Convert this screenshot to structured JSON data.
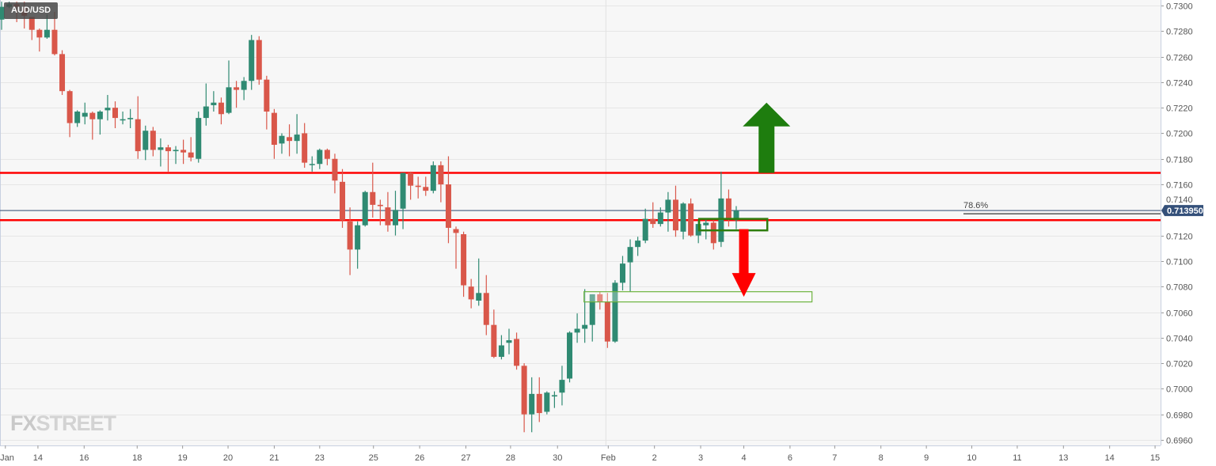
{
  "symbol": "AUD/USD",
  "logo": {
    "text_a": "FX",
    "text_b": "STREET"
  },
  "colors": {
    "up": "#2f8a72",
    "down": "#d9574a",
    "level_line": "#ff0000",
    "price_line": "#34507a",
    "up_arrow": "#1e7d0e",
    "down_arrow": "#ff0000",
    "zone_box": "#2e7d0e",
    "zone_box_light": "#6db33f",
    "grid": "#e6e6e6",
    "background": "#f7f7f7"
  },
  "chart_data": {
    "type": "candlestick",
    "title": "AUD/USD",
    "ylim": [
      0.6955,
      0.7304
    ],
    "y_ticks": [
      "0.7300",
      "0.7280",
      "0.7260",
      "0.7240",
      "0.7220",
      "0.7200",
      "0.7180",
      "0.7160",
      "0.7140",
      "0.7120",
      "0.7100",
      "0.7080",
      "0.7060",
      "0.7040",
      "0.7020",
      "0.7000",
      "0.6980",
      "0.6960"
    ],
    "x_ticks": [
      {
        "label": "Jan",
        "bar": 0.5
      },
      {
        "label": "14",
        "bar": 4.8
      },
      {
        "label": "16",
        "bar": 10.9
      },
      {
        "label": "18",
        "bar": 17.9
      },
      {
        "label": "19",
        "bar": 23.9
      },
      {
        "label": "20",
        "bar": 29.9
      },
      {
        "label": "21",
        "bar": 36
      },
      {
        "label": "23",
        "bar": 42
      },
      {
        "label": "25",
        "bar": 49.1
      },
      {
        "label": "26",
        "bar": 55.2
      },
      {
        "label": "27",
        "bar": 61.3
      },
      {
        "label": "28",
        "bar": 67.2
      },
      {
        "label": "30",
        "bar": 73.4
      },
      {
        "label": "Feb",
        "bar": 80.1
      },
      {
        "label": "2",
        "bar": 86.2
      },
      {
        "label": "3",
        "bar": 92.3
      },
      {
        "label": "4",
        "bar": 98
      },
      {
        "label": "6",
        "bar": 104.1
      },
      {
        "label": "7",
        "bar": 110
      },
      {
        "label": "8",
        "bar": 116.1
      },
      {
        "label": "9",
        "bar": 122.1
      },
      {
        "label": "10",
        "bar": 128.1
      },
      {
        "label": "11",
        "bar": 134.1
      },
      {
        "label": "13",
        "bar": 140.2
      },
      {
        "label": "14",
        "bar": 146.3
      },
      {
        "label": "15",
        "bar": 152.3
      }
    ],
    "month_separator_bar": 80,
    "grid": {
      "horizontal": true,
      "vertical": false
    },
    "ohlc_fields": [
      "open",
      "high",
      "low",
      "close"
    ],
    "candles": [
      [
        0.7289,
        0.7303,
        0.7281,
        0.7299
      ],
      [
        0.7299,
        0.7303,
        0.7298,
        0.7301
      ],
      [
        0.7301,
        0.7303,
        0.7287,
        0.7299
      ],
      [
        0.7298,
        0.7303,
        0.7282,
        0.7292
      ],
      [
        0.7291,
        0.7291,
        0.7273,
        0.7281
      ],
      [
        0.7281,
        0.7282,
        0.7264,
        0.7275
      ],
      [
        0.7275,
        0.7293,
        0.7274,
        0.7281
      ],
      [
        0.7281,
        0.7295,
        0.7261,
        0.7262
      ],
      [
        0.7262,
        0.7265,
        0.723,
        0.7233
      ],
      [
        0.7233,
        0.7234,
        0.7197,
        0.7208
      ],
      [
        0.7208,
        0.7218,
        0.7205,
        0.7217
      ],
      [
        0.7213,
        0.7224,
        0.7207,
        0.7216
      ],
      [
        0.7216,
        0.7217,
        0.7195,
        0.7211
      ],
      [
        0.7211,
        0.7218,
        0.7199,
        0.7217
      ],
      [
        0.7218,
        0.723,
        0.721,
        0.722
      ],
      [
        0.722,
        0.7225,
        0.7204,
        0.7212
      ],
      [
        0.7211,
        0.7217,
        0.7207,
        0.7211
      ],
      [
        0.7211,
        0.7219,
        0.7204,
        0.7212
      ],
      [
        0.7211,
        0.7229,
        0.718,
        0.7186
      ],
      [
        0.7187,
        0.7206,
        0.7179,
        0.7202
      ],
      [
        0.7202,
        0.7205,
        0.7182,
        0.7187
      ],
      [
        0.7187,
        0.7196,
        0.7174,
        0.7189
      ],
      [
        0.7189,
        0.7191,
        0.717,
        0.7186
      ],
      [
        0.7186,
        0.719,
        0.7176,
        0.7187
      ],
      [
        0.7187,
        0.7195,
        0.7176,
        0.7185
      ],
      [
        0.7185,
        0.7197,
        0.7178,
        0.7181
      ],
      [
        0.718,
        0.7217,
        0.7177,
        0.7212
      ],
      [
        0.7212,
        0.7239,
        0.7206,
        0.7221
      ],
      [
        0.7222,
        0.7233,
        0.7217,
        0.7224
      ],
      [
        0.7224,
        0.7228,
        0.7207,
        0.7215
      ],
      [
        0.7216,
        0.7257,
        0.7215,
        0.7236
      ],
      [
        0.7236,
        0.7241,
        0.722,
        0.7234
      ],
      [
        0.7234,
        0.7244,
        0.7226,
        0.7241
      ],
      [
        0.7241,
        0.7277,
        0.7234,
        0.7273
      ],
      [
        0.7273,
        0.7276,
        0.7238,
        0.7242
      ],
      [
        0.7242,
        0.7245,
        0.7203,
        0.7217
      ],
      [
        0.7216,
        0.7219,
        0.718,
        0.7191
      ],
      [
        0.7192,
        0.72,
        0.7184,
        0.7198
      ],
      [
        0.7197,
        0.7207,
        0.7182,
        0.7194
      ],
      [
        0.7194,
        0.7215,
        0.7184,
        0.7199
      ],
      [
        0.72,
        0.7208,
        0.7173,
        0.7177
      ],
      [
        0.7176,
        0.7182,
        0.717,
        0.7176
      ],
      [
        0.7176,
        0.7188,
        0.7172,
        0.7187
      ],
      [
        0.7187,
        0.7188,
        0.7175,
        0.718
      ],
      [
        0.718,
        0.7184,
        0.7153,
        0.7163
      ],
      [
        0.7162,
        0.7172,
        0.7126,
        0.7132
      ],
      [
        0.7131,
        0.7142,
        0.7089,
        0.7109
      ],
      [
        0.7109,
        0.7131,
        0.7094,
        0.7128
      ],
      [
        0.7128,
        0.7155,
        0.7127,
        0.7154
      ],
      [
        0.7154,
        0.7177,
        0.7134,
        0.7144
      ],
      [
        0.7144,
        0.7148,
        0.7128,
        0.7143
      ],
      [
        0.7142,
        0.7154,
        0.7123,
        0.7128
      ],
      [
        0.7128,
        0.7155,
        0.712,
        0.714
      ],
      [
        0.7141,
        0.7169,
        0.7125,
        0.7169
      ],
      [
        0.7169,
        0.717,
        0.7148,
        0.7159
      ],
      [
        0.7159,
        0.7166,
        0.7149,
        0.7158
      ],
      [
        0.7158,
        0.7166,
        0.7151,
        0.7155
      ],
      [
        0.7155,
        0.7178,
        0.7153,
        0.7175
      ],
      [
        0.7175,
        0.7178,
        0.7146,
        0.716
      ],
      [
        0.716,
        0.7182,
        0.7114,
        0.7126
      ],
      [
        0.7125,
        0.7127,
        0.7094,
        0.7122
      ],
      [
        0.7121,
        0.7123,
        0.7072,
        0.7081
      ],
      [
        0.708,
        0.7086,
        0.7063,
        0.707
      ],
      [
        0.7069,
        0.7102,
        0.7065,
        0.7075
      ],
      [
        0.7075,
        0.7089,
        0.7042,
        0.705
      ],
      [
        0.705,
        0.7062,
        0.7024,
        0.7025
      ],
      [
        0.7025,
        0.7042,
        0.7023,
        0.7034
      ],
      [
        0.7036,
        0.7047,
        0.7027,
        0.7038
      ],
      [
        0.7039,
        0.7044,
        0.7015,
        0.7018
      ],
      [
        0.7018,
        0.702,
        0.6966,
        0.698
      ],
      [
        0.698,
        0.7009,
        0.6966,
        0.6996
      ],
      [
        0.6996,
        0.7009,
        0.6974,
        0.6981
      ],
      [
        0.6982,
        0.6998,
        0.698,
        0.6997
      ],
      [
        0.6994,
        0.6998,
        0.6985,
        0.6995
      ],
      [
        0.6997,
        0.7018,
        0.6987,
        0.7007
      ],
      [
        0.7008,
        0.7045,
        0.7005,
        0.7044
      ],
      [
        0.7044,
        0.7059,
        0.7036,
        0.7047
      ],
      [
        0.7047,
        0.7078,
        0.7036,
        0.705
      ],
      [
        0.705,
        0.7074,
        0.7037,
        0.7074
      ],
      [
        0.7074,
        0.7076,
        0.7062,
        0.7068
      ],
      [
        0.7068,
        0.7075,
        0.7032,
        0.7037
      ],
      [
        0.7037,
        0.7085,
        0.7036,
        0.7083
      ],
      [
        0.7083,
        0.7104,
        0.7077,
        0.7098
      ],
      [
        0.7099,
        0.7117,
        0.7076,
        0.7111
      ],
      [
        0.7111,
        0.7119,
        0.7104,
        0.7116
      ],
      [
        0.7116,
        0.7141,
        0.7114,
        0.7133
      ],
      [
        0.7133,
        0.7146,
        0.7126,
        0.7129
      ],
      [
        0.7129,
        0.7142,
        0.7127,
        0.7138
      ],
      [
        0.7138,
        0.7154,
        0.7123,
        0.7148
      ],
      [
        0.7148,
        0.7159,
        0.7119,
        0.7124
      ],
      [
        0.7123,
        0.7146,
        0.7117,
        0.7145
      ],
      [
        0.7145,
        0.7149,
        0.7119,
        0.712
      ],
      [
        0.712,
        0.7132,
        0.7114,
        0.7129
      ],
      [
        0.7128,
        0.7133,
        0.7117,
        0.713
      ],
      [
        0.713,
        0.7132,
        0.7109,
        0.7114
      ],
      [
        0.7115,
        0.717,
        0.7111,
        0.7149
      ],
      [
        0.7149,
        0.7156,
        0.7127,
        0.7133
      ],
      [
        0.7132,
        0.7143,
        0.7125,
        0.71395
      ]
    ],
    "last_price": {
      "value": 0.71395,
      "label": "0.713950"
    },
    "annotations": {
      "resistance_levels": [
        0.7169,
        0.7132
      ],
      "fib_level": {
        "label": "78.6%",
        "price": 0.7137,
        "from_bar": 127
      },
      "up_arrow": {
        "bar": 101,
        "from": 0.7169,
        "to": 0.7224
      },
      "down_arrow": {
        "bar": 98,
        "from": 0.7125,
        "to": 0.7072
      },
      "zone_box": {
        "from_bar": 92.1,
        "to_bar": 101.1,
        "top": 0.7133,
        "bottom": 0.7124
      },
      "target_box": {
        "from_bar": 76.9,
        "to_bar": 107,
        "top": 0.7076,
        "bottom": 0.7068
      }
    }
  }
}
